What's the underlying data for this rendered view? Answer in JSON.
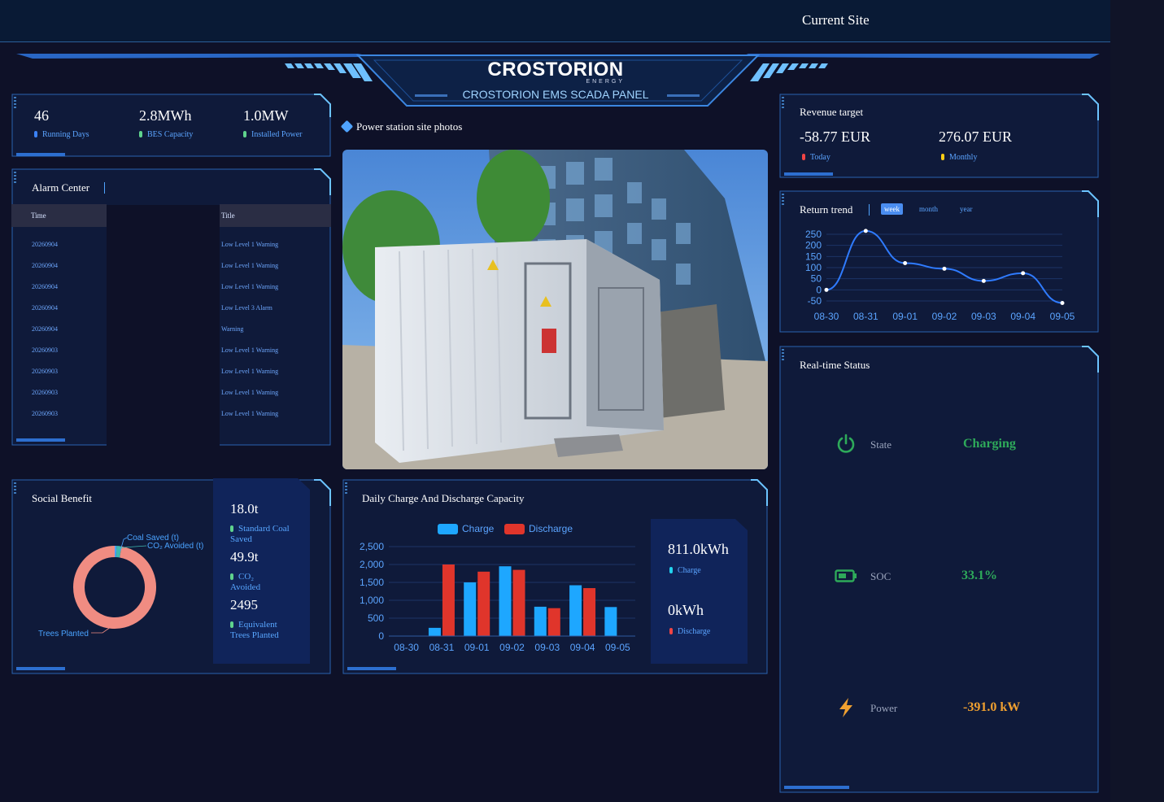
{
  "topbar": {
    "site_label": "Current Site"
  },
  "brand": {
    "logo": "CROSTORION",
    "energy": "ENERGY",
    "subtitle": "CROSTORION EMS SCADA PANEL"
  },
  "overview": {
    "items": [
      {
        "value": "46",
        "label": "Running Days",
        "color": "#3b82f6"
      },
      {
        "value": "2.8MWh",
        "label": "BES Capacity",
        "color": "#5fd38d"
      },
      {
        "value": "1.0MW",
        "label": "Installed Power",
        "color": "#5fd38d"
      }
    ]
  },
  "alarm": {
    "title": "Alarm Center",
    "columns": [
      "Time",
      "Title"
    ],
    "rows": [
      {
        "time": "20260904",
        "title": "Low Level 1 Warning"
      },
      {
        "time": "20260904",
        "title": "Low Level 1 Warning"
      },
      {
        "time": "20260904",
        "title": "Low Level 1 Warning"
      },
      {
        "time": "20260904",
        "title": "Low Level 3 Alarm"
      },
      {
        "time": "20260904",
        "title": "Warning"
      },
      {
        "time": "20260903",
        "title": "Low Level 1 Warning"
      },
      {
        "time": "20260903",
        "title": "Low Level 1 Warning"
      },
      {
        "time": "20260903",
        "title": "Low Level 1 Warning"
      },
      {
        "time": "20260903",
        "title": "Low Level 1 Warning"
      }
    ]
  },
  "photos": {
    "title": "Power station site photos"
  },
  "social": {
    "title": "Social Benefit",
    "stats": [
      {
        "value": "18.0t",
        "label": "Standard Coal Saved"
      },
      {
        "value": "49.9t",
        "label": "CO₂ Avoided"
      },
      {
        "value": "2495",
        "label": "Equivalent Trees Planted"
      }
    ],
    "donut_labels": {
      "coal": "Coal Saved (t)",
      "co2": "CO₂ Avoided (t)",
      "trees": "Trees Planted"
    },
    "colors": {
      "trees": "#f08c82",
      "co2": "#3fb8b0",
      "coal": "#4aa3ff"
    }
  },
  "revenue": {
    "title": "Revenue target",
    "items": [
      {
        "value": "-58.77 EUR",
        "label": "Today",
        "color": "#ef4444"
      },
      {
        "value": "276.07 EUR",
        "label": "Monthly",
        "color": "#facc15"
      }
    ]
  },
  "realtime": {
    "title": "Real-time Status",
    "items": [
      {
        "label": "State",
        "value": "Charging",
        "color": "#2eaa5a",
        "icon": "power-icon"
      },
      {
        "label": "SOC",
        "value": "33.1%",
        "color": "#2eaa5a",
        "icon": "battery-icon"
      },
      {
        "label": "Power",
        "value": "-391.0 kW",
        "color": "#f0a030",
        "icon": "lightning-icon"
      }
    ]
  },
  "daily": {
    "title": "Daily Charge And Discharge Capacity",
    "summary": [
      {
        "value": "811.0kWh",
        "label": "Charge",
        "color": "#22d3ee"
      },
      {
        "value": "0kWh",
        "label": "Discharge",
        "color": "#ef4444"
      }
    ]
  },
  "chart_data": [
    {
      "type": "bar",
      "title": "Daily Charge And Discharge Capacity",
      "categories": [
        "08-30",
        "08-31",
        "09-01",
        "09-02",
        "09-03",
        "09-04",
        "09-05"
      ],
      "series": [
        {
          "name": "Charge",
          "values": [
            0,
            230,
            1500,
            1950,
            820,
            1420,
            811
          ],
          "color": "#1ea7ff"
        },
        {
          "name": "Discharge",
          "values": [
            0,
            2000,
            1800,
            1850,
            780,
            1340,
            0
          ],
          "color": "#e0352b"
        }
      ],
      "yticks": [
        "0",
        "500",
        "1,000",
        "1,500",
        "2,000",
        "2,500"
      ],
      "ylim": [
        0,
        2500
      ],
      "legend": "top-center"
    },
    {
      "type": "line",
      "title": "Return trend",
      "tabs": [
        "week",
        "month",
        "year"
      ],
      "active_tab": "week",
      "x": [
        "08-30",
        "08-31",
        "09-01",
        "09-02",
        "09-03",
        "09-04",
        "09-05"
      ],
      "series": [
        {
          "name": "",
          "values": [
            0,
            265,
            120,
            95,
            40,
            75,
            -59
          ],
          "color": "#2f7bff"
        }
      ],
      "yticks": [
        "-50",
        "0",
        "50",
        "100",
        "150",
        "200",
        "250"
      ],
      "ylim": [
        -50,
        250
      ]
    },
    {
      "type": "pie",
      "title": "Social Benefit",
      "categories": [
        "Coal Saved (t)",
        "CO₂ Avoided (t)",
        "Trees Planted"
      ],
      "values": [
        18.0,
        49.9,
        2495
      ]
    }
  ]
}
